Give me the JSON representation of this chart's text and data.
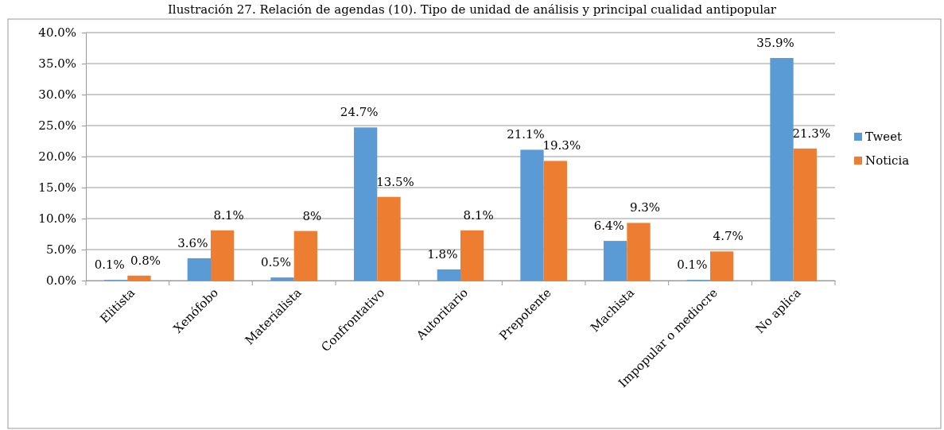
{
  "chart_data": {
    "type": "bar",
    "title": "Ilustración 27. Relación de agendas (10). Tipo de unidad de análisis y principal cualidad antipopular",
    "categories": [
      "Elitista",
      "Xenófobo",
      "Materialista",
      "Confrontativo",
      "Autoritario",
      "Prepotente",
      "Machista",
      "Impopular o mediocre",
      "No aplica"
    ],
    "series": [
      {
        "name": "Tweet",
        "color": "#5b9bd5",
        "values": [
          0.1,
          3.6,
          0.5,
          24.7,
          1.8,
          21.1,
          6.4,
          0.1,
          35.9
        ],
        "value_labels": [
          "0.1%",
          "3.6%",
          "0.5%",
          "24.7%",
          "1.8%",
          "21.1%",
          "6.4%",
          "0.1%",
          "35.9%"
        ]
      },
      {
        "name": "Noticia",
        "color": "#ed7d31",
        "values": [
          0.8,
          8.1,
          8,
          13.5,
          8.1,
          19.3,
          9.3,
          4.7,
          21.3
        ],
        "value_labels": [
          "0.8%",
          "8.1%",
          "8%",
          "13.5%",
          "8.1%",
          "19.3%",
          "9.3%",
          "4.7%",
          "21.3%"
        ]
      }
    ],
    "ylim": [
      0,
      40
    ],
    "yticks": [
      {
        "value": 0,
        "label": "0.0%"
      },
      {
        "value": 5,
        "label": "5.0%"
      },
      {
        "value": 10,
        "label": "10.0%"
      },
      {
        "value": 15,
        "label": "15.0%"
      },
      {
        "value": 20,
        "label": "20.0%"
      },
      {
        "value": 25,
        "label": "25.0%"
      },
      {
        "value": 30,
        "label": "30.0%"
      },
      {
        "value": 35,
        "label": "35.0%"
      },
      {
        "value": 40,
        "label": "40.0%"
      }
    ],
    "grid": "y",
    "legend": "right"
  }
}
